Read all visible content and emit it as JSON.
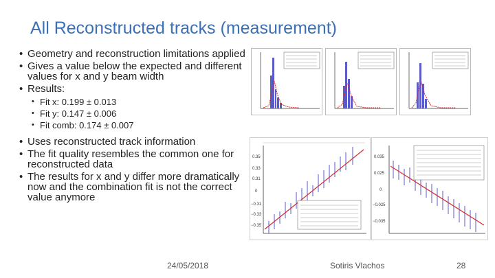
{
  "slide": {
    "title": "All Reconstructed tracks (measurement)",
    "bullets_top": [
      "Geometry and reconstruction limitations applied",
      "Gives a value below the expected and different values for x and y beam width",
      "Results:"
    ],
    "results": [
      "Fit x: 0.199 ± 0.013",
      "Fit y: 0.147 ± 0.006",
      "Fit comb: 0.174 ± 0.007"
    ],
    "bullets_bottom": [
      "Uses reconstructed track information",
      "The fit quality resembles the common one for reconstructed data",
      "The results for x and y differ more dramatically now and the combination fit is not the correct value anymore"
    ],
    "footer": {
      "date": "24/05/2018",
      "author": "Sotiris Vlachos",
      "page": "28"
    }
  },
  "colors": {
    "title": "#3c6fb5",
    "histogram": "#5a5ac8",
    "fit": "#d62728"
  },
  "plots": {
    "bottom_left_yticks": [
      "0.35",
      "0.33",
      "0.31",
      "0",
      "−0.31",
      "−0.33",
      "−0.35"
    ],
    "bottom_right_yticks": [
      "0.035",
      "0.025",
      "0",
      "−0.025",
      "−0.035"
    ]
  }
}
